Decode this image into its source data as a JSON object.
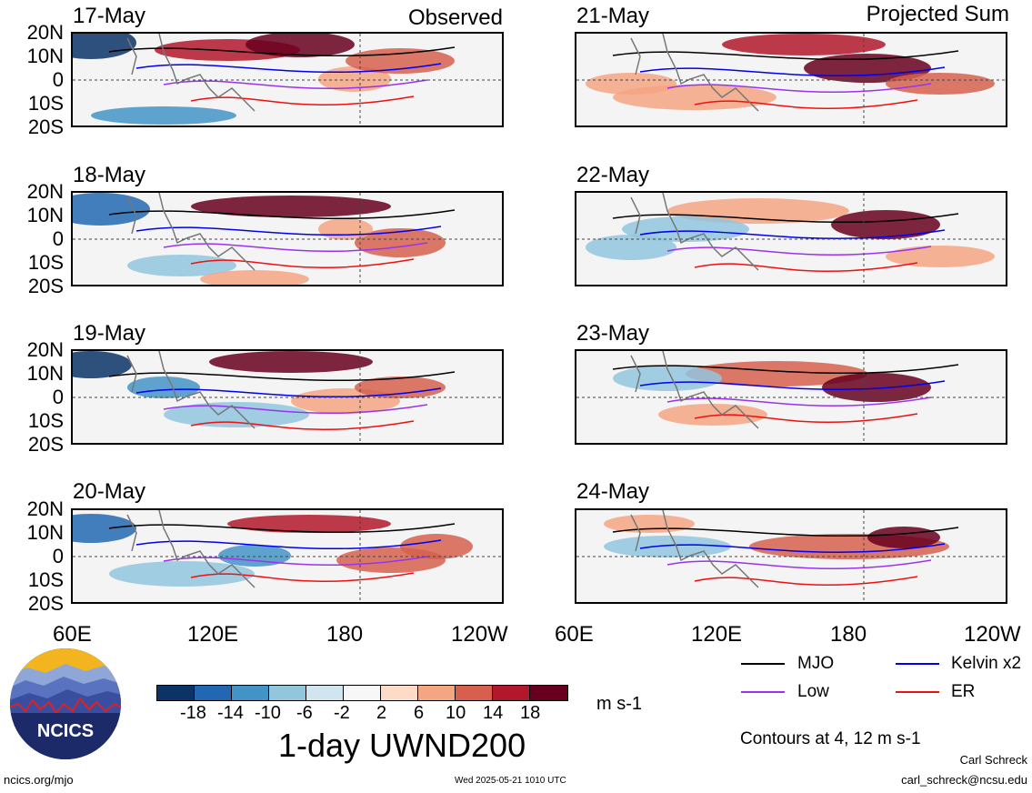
{
  "columns": {
    "left_title": "Observed",
    "right_title": "Projected Sum"
  },
  "panels_left": [
    {
      "date": "17-May"
    },
    {
      "date": "18-May"
    },
    {
      "date": "19-May"
    },
    {
      "date": "20-May"
    }
  ],
  "panels_right": [
    {
      "date": "21-May"
    },
    {
      "date": "22-May"
    },
    {
      "date": "23-May"
    },
    {
      "date": "24-May"
    }
  ],
  "lat_labels": [
    "20N",
    "10N",
    "0",
    "10S",
    "20S"
  ],
  "lon_labels": [
    "60E",
    "120E",
    "180",
    "120W"
  ],
  "colorbar": {
    "title": "1-day UWND200",
    "unit": "m s-1",
    "ticks": [
      "-18",
      "-14",
      "-10",
      "-6",
      "-2",
      "2",
      "6",
      "10",
      "14",
      "18"
    ],
    "colors": [
      "#0b3366",
      "#2267b1",
      "#4394c6",
      "#92c5de",
      "#d1e5f0",
      "#f7f7f7",
      "#fddbc7",
      "#f4a582",
      "#d6604d",
      "#b2182b",
      "#67001f"
    ]
  },
  "legend": {
    "items": [
      {
        "label": "MJO",
        "color": "#000000"
      },
      {
        "label": "Kelvin x2",
        "color": "#0000ee"
      },
      {
        "label": "Low",
        "color": "#9933ee"
      },
      {
        "label": "ER",
        "color": "#ee1111"
      }
    ],
    "contour_note": "Contours at 4, 12 m s-1"
  },
  "logo": {
    "text": "NCICS"
  },
  "footer": {
    "url": "ncics.org/mjo",
    "timestamp": "Wed 2025-05-21 1010 UTC",
    "author": "Carl Schreck",
    "email": "carl_schreck@ncsu.edu"
  }
}
